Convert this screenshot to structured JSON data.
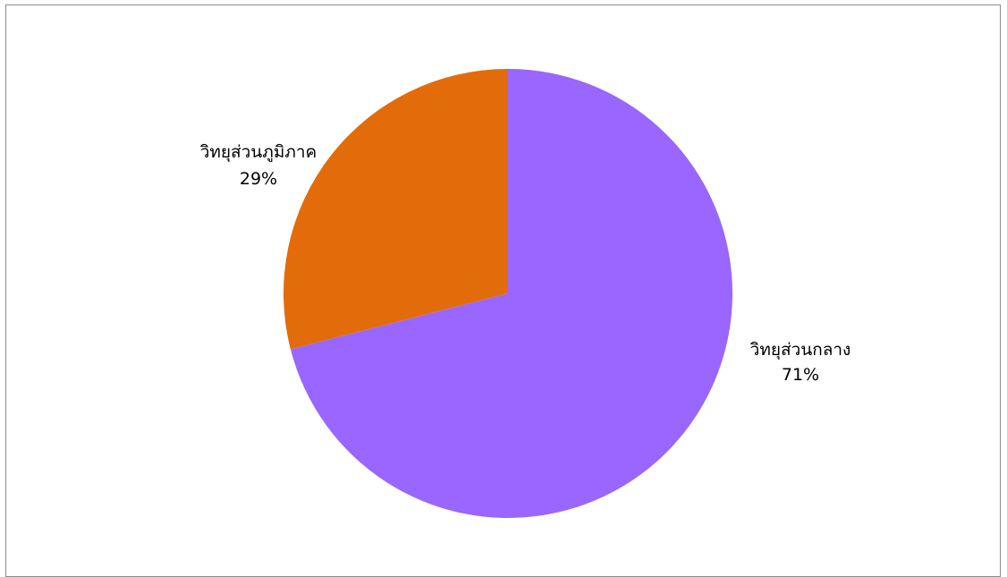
{
  "chart_data": {
    "type": "pie",
    "title": "",
    "slices": [
      {
        "label": "วิทยุส่วนกลาง",
        "value": 71,
        "percent_label": "71%",
        "color": "#9966ff"
      },
      {
        "label": "วิทยุส่วนภูมิภาค",
        "value": 29,
        "percent_label": "29%",
        "color": "#e36c0a"
      }
    ],
    "start_angle": "12 o'clock",
    "direction": "clockwise",
    "legend": "none",
    "data_labels": "outside"
  }
}
